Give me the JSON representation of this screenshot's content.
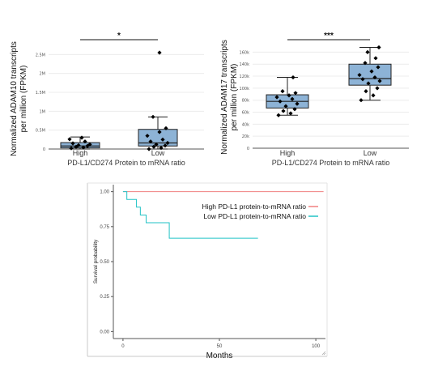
{
  "chart_data": [
    {
      "type": "box",
      "title": "",
      "xlabel": "PD-L1/CD274 Protein to mRNA ratio",
      "ylabel_line1": "Normalized ADAM10 transcripts",
      "ylabel_line2": "per million (FPKM)",
      "categories": [
        "High",
        "Low"
      ],
      "yticks": [
        0,
        500000,
        1000000,
        1500000,
        2000000,
        2500000
      ],
      "ytick_labels": [
        "0",
        "0.5M",
        "1M",
        "1.5M",
        "2M",
        "2.5M"
      ],
      "ylim": [
        0,
        2700000
      ],
      "grid": true,
      "significance": "*",
      "boxes": [
        {
          "name": "High",
          "q1": 30000,
          "median": 80000,
          "q3": 170000,
          "whisker_low": 0,
          "whisker_high": 320000
        },
        {
          "name": "Low",
          "q1": 80000,
          "median": 160000,
          "q3": 520000,
          "whisker_low": 0,
          "whisker_high": 850000
        }
      ],
      "points": [
        {
          "category": "High",
          "values": [
            20000,
            40000,
            60000,
            80000,
            100000,
            120000,
            150000,
            200000,
            260000,
            300000
          ]
        },
        {
          "category": "Low",
          "values": [
            0,
            30000,
            60000,
            90000,
            120000,
            160000,
            200000,
            250000,
            350000,
            450000,
            550000,
            850000,
            2550000
          ]
        }
      ]
    },
    {
      "type": "box",
      "title": "",
      "xlabel": "PD-L1/CD274 Protein to mRNA ratio",
      "ylabel_line1": "Normalized ADAM17 transcripts",
      "ylabel_line2": "per million (FPKM)",
      "categories": [
        "High",
        "Low"
      ],
      "yticks": [
        0,
        20000,
        40000,
        60000,
        80000,
        100000,
        120000,
        140000,
        160000
      ],
      "ytick_labels": [
        "0",
        "20k",
        "40k",
        "60k",
        "80k",
        "100k",
        "120k",
        "140k",
        "160k"
      ],
      "ylim": [
        0,
        170000
      ],
      "grid": true,
      "significance": "***",
      "boxes": [
        {
          "name": "High",
          "q1": 67000,
          "median": 78000,
          "q3": 89000,
          "whisker_low": 55000,
          "whisker_high": 118000
        },
        {
          "name": "Low",
          "q1": 105000,
          "median": 116000,
          "q3": 140000,
          "whisker_low": 80000,
          "whisker_high": 168000
        }
      ],
      "points": [
        {
          "category": "High",
          "values": [
            55000,
            58000,
            62000,
            65000,
            70000,
            74000,
            78000,
            82000,
            85000,
            88000,
            92000,
            95000,
            118000
          ]
        },
        {
          "category": "Low",
          "values": [
            80000,
            88000,
            95000,
            100000,
            108000,
            112000,
            115000,
            118000,
            122000,
            128000,
            135000,
            142000,
            150000,
            160000,
            168000
          ]
        }
      ]
    },
    {
      "type": "line",
      "subtype": "kaplan-meier",
      "title": "",
      "xlabel": "Months",
      "ylabel": "Survival probability",
      "xlim": [
        -5,
        105
      ],
      "ylim": [
        -0.05,
        1.05
      ],
      "xticks": [
        0,
        50,
        100
      ],
      "yticks": [
        0.0,
        0.25,
        0.5,
        0.75,
        1.0
      ],
      "ytick_labels": [
        "0.00",
        "0.25",
        "0.50",
        "0.75",
        "1.00"
      ],
      "legend_position": "top-right",
      "series": [
        {
          "name": "High PD-L1 protein-to-mRNA ratio",
          "color": "#f08080",
          "x": [
            0,
            104
          ],
          "y": [
            1.0,
            1.0
          ]
        },
        {
          "name": "Low PD-L1 protein-to-mRNA ratio",
          "color": "#22c3c6",
          "x": [
            0,
            2,
            7,
            9,
            12,
            24,
            70
          ],
          "y": [
            1.0,
            0.944,
            0.889,
            0.833,
            0.778,
            0.667,
            0.667
          ]
        }
      ]
    }
  ]
}
